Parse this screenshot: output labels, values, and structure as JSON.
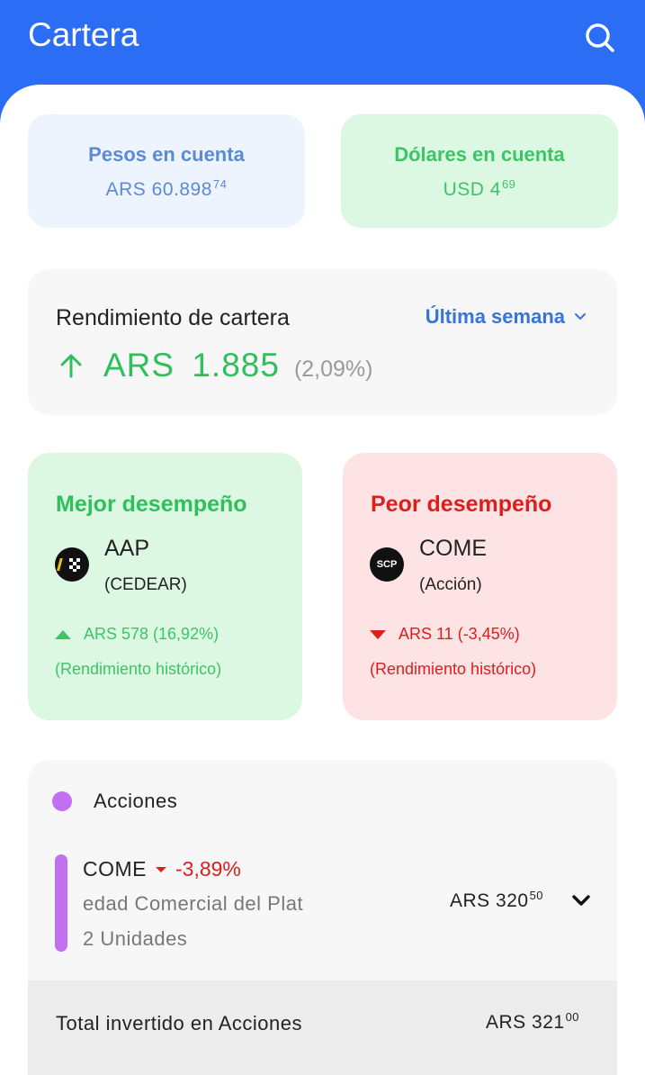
{
  "header": {
    "title": "Cartera"
  },
  "balances": {
    "pesos": {
      "label": "Pesos en cuenta",
      "currency": "ARS",
      "integer": "60.898",
      "decimals": "74"
    },
    "usd": {
      "label": "Dólares en cuenta",
      "currency": "USD",
      "integer": "4",
      "decimals": "69"
    }
  },
  "performance": {
    "title": "Rendimiento de cartera",
    "period": "Última semana",
    "amount": "ARS 1.885",
    "percent": "(2,09%)"
  },
  "best": {
    "title": "Mejor desempeño",
    "symbol": "AAP",
    "type": "(CEDEAR)",
    "change": "ARS 578 (16,92%)",
    "history": "(Rendimiento histórico)"
  },
  "worst": {
    "title": "Peor desempeño",
    "symbol": "COME",
    "type": "(Acción)",
    "logo_text": "SCP",
    "change": "ARS 11 (-3,45%)",
    "history": "(Rendimiento histórico)"
  },
  "holdings": {
    "category": "Acciones",
    "items": [
      {
        "symbol": "COME",
        "change": "-3,89%",
        "name": "edad Comercial del Plat",
        "units": "2 Unidades",
        "currency": "ARS",
        "integer": "320",
        "decimals": "50"
      }
    ],
    "total": {
      "label": "Total invertido en Acciones",
      "currency": "ARS",
      "integer": "321",
      "decimals": "00"
    }
  },
  "colors": {
    "primary": "#2b6ef5",
    "positive": "#2fbf5c",
    "negative": "#dc1e1e",
    "category": "#c070f0"
  }
}
